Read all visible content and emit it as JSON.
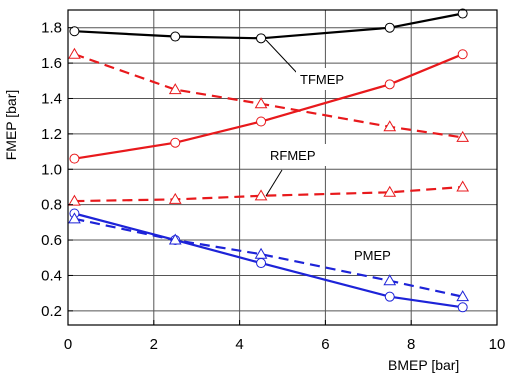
{
  "chart_data": {
    "type": "line",
    "xlabel": "BMEP [bar]",
    "ylabel": "FMEP [bar]",
    "xlim": [
      0,
      10
    ],
    "ylim": [
      0.12,
      1.9
    ],
    "xticks": [
      0,
      2,
      4,
      6,
      8,
      10
    ],
    "yticks": [
      0.2,
      0.4,
      0.6,
      0.8,
      1.0,
      1.2,
      1.4,
      1.6,
      1.8
    ],
    "ytick_labels": [
      "0.2",
      "0.4",
      "0.6",
      "0.8",
      "1.0",
      "1.2",
      "1.4",
      "1.6",
      "1.8"
    ],
    "grid": true,
    "series": [
      {
        "color": "#000000",
        "line": "solid",
        "marker": "circle",
        "x": [
          0.15,
          2.5,
          4.5,
          7.5,
          9.2
        ],
        "y": [
          1.78,
          1.75,
          1.74,
          1.8,
          1.88
        ]
      },
      {
        "color": "#e8191c",
        "line": "solid",
        "marker": "circle",
        "x": [
          0.15,
          2.5,
          4.5,
          7.5,
          9.2
        ],
        "y": [
          1.06,
          1.15,
          1.27,
          1.48,
          1.65
        ]
      },
      {
        "color": "#e8191c",
        "line": "dashed",
        "marker": "triangle",
        "x": [
          0.15,
          2.5,
          4.5,
          7.5,
          9.2
        ],
        "y": [
          1.65,
          1.45,
          1.37,
          1.24,
          1.18
        ]
      },
      {
        "color": "#e8191c",
        "line": "dashed",
        "marker": "triangle",
        "x": [
          0.15,
          2.5,
          4.5,
          7.5,
          9.2
        ],
        "y": [
          0.82,
          0.83,
          0.85,
          0.87,
          0.9
        ]
      },
      {
        "color": "#1d23d8",
        "line": "solid",
        "marker": "circle",
        "x": [
          0.15,
          2.5,
          4.5,
          7.5,
          9.2
        ],
        "y": [
          0.75,
          0.6,
          0.47,
          0.28,
          0.22
        ]
      },
      {
        "color": "#1d23d8",
        "line": "dashed",
        "marker": "triangle",
        "x": [
          0.15,
          2.5,
          4.5,
          7.5,
          9.2
        ],
        "y": [
          0.72,
          0.6,
          0.52,
          0.37,
          0.28
        ]
      }
    ],
    "annotations": [
      {
        "text": "TFMEP",
        "points_to": {
          "x": 4.5,
          "y": 1.74
        }
      },
      {
        "text": "RFMEP",
        "points_to": {
          "x": 4.5,
          "y": 0.85
        }
      },
      {
        "text": "PMEP"
      }
    ]
  }
}
